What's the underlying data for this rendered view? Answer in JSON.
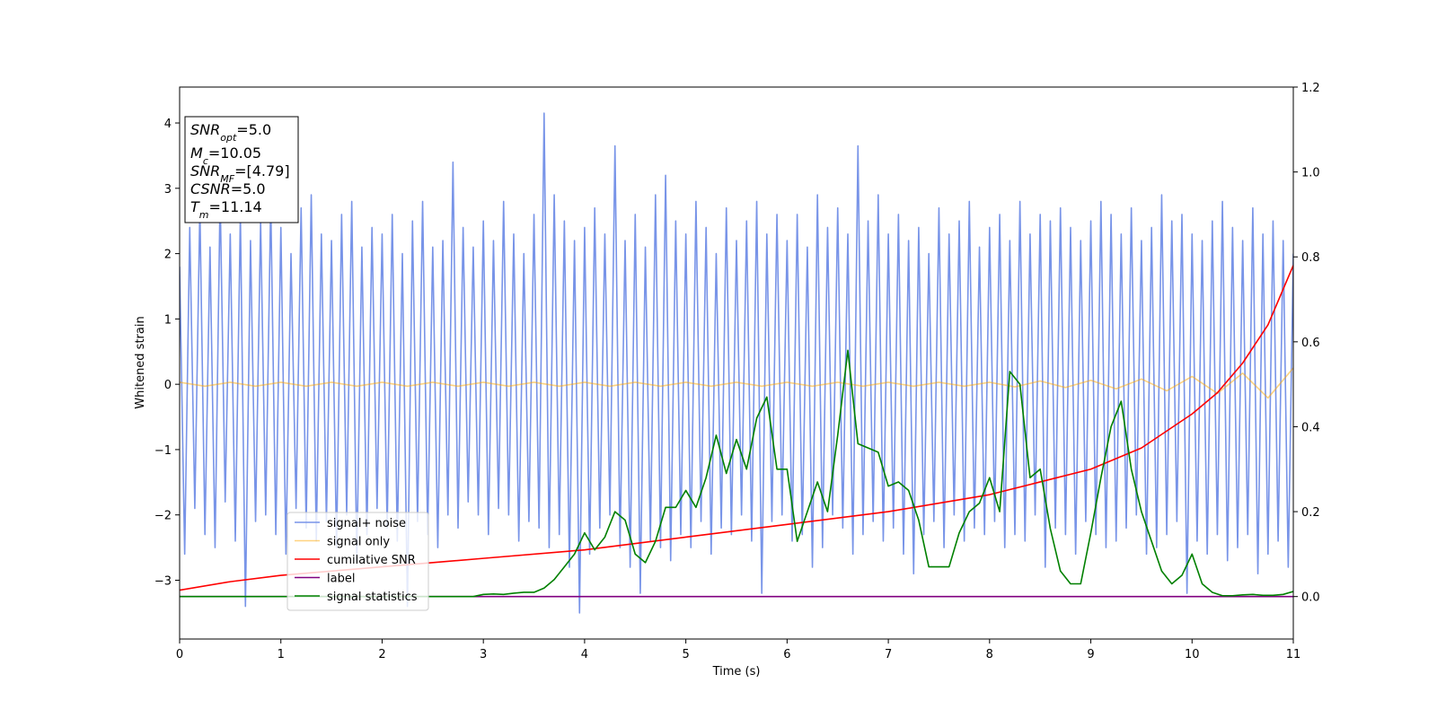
{
  "chart_data": {
    "type": "line",
    "xlabel": "Time (s)",
    "ylabel": "Whitened strain",
    "xlim": [
      0,
      11
    ],
    "xticks": [
      0,
      1,
      2,
      3,
      4,
      5,
      6,
      7,
      8,
      9,
      10,
      11
    ],
    "ylim": [
      -3.9,
      4.55
    ],
    "yticks": [
      {
        "value": -3,
        "label": "−3"
      },
      {
        "value": -2,
        "label": "−2"
      },
      {
        "value": -1,
        "label": "−1"
      },
      0,
      1,
      2,
      3,
      4
    ],
    "y2lim": [
      -0.1,
      1.2
    ],
    "y2ticks": [
      {
        "value": 0,
        "label": "0.0"
      },
      {
        "value": 0.2,
        "label": "0.2"
      },
      {
        "value": 0.4,
        "label": "0.4"
      },
      {
        "value": 0.6,
        "label": "0.6"
      },
      {
        "value": 0.8,
        "label": "0.8"
      },
      {
        "value": 1.0,
        "label": "1.0"
      },
      {
        "value": 1.2,
        "label": "1.2"
      }
    ],
    "legend": "lower left",
    "annotations": [
      {
        "main": "SNR",
        "sub": "opt",
        "rest": "=5.0"
      },
      {
        "main": "M",
        "sub": "c",
        "rest": "=10.05"
      },
      {
        "main": "SNR",
        "sub": "MF",
        "rest": "=[4.79]"
      },
      {
        "main": "CSNR",
        "rest": "=5.0"
      },
      {
        "main": "T",
        "sub": "m",
        "rest": "=11.14"
      }
    ],
    "series": [
      {
        "name": "signal+ noise",
        "color": "#7894e8",
        "x": [
          0,
          0.05,
          0.1,
          0.15,
          0.2,
          0.25,
          0.3,
          0.35,
          0.4,
          0.45,
          0.5,
          0.55,
          0.6,
          0.65,
          0.7,
          0.75,
          0.8,
          0.85,
          0.9,
          0.95,
          1,
          1.05,
          1.1,
          1.15,
          1.2,
          1.25,
          1.3,
          1.35,
          1.4,
          1.45,
          1.5,
          1.55,
          1.6,
          1.65,
          1.7,
          1.75,
          1.8,
          1.85,
          1.9,
          1.95,
          2,
          2.05,
          2.1,
          2.15,
          2.2,
          2.25,
          2.3,
          2.35,
          2.4,
          2.45,
          2.5,
          2.55,
          2.6,
          2.65,
          2.7,
          2.75,
          2.8,
          2.85,
          2.9,
          2.95,
          3,
          3.05,
          3.1,
          3.15,
          3.2,
          3.25,
          3.3,
          3.35,
          3.4,
          3.45,
          3.5,
          3.55,
          3.6,
          3.65,
          3.7,
          3.75,
          3.8,
          3.85,
          3.9,
          3.95,
          4,
          4.05,
          4.1,
          4.15,
          4.2,
          4.25,
          4.3,
          4.35,
          4.4,
          4.45,
          4.5,
          4.55,
          4.6,
          4.65,
          4.7,
          4.75,
          4.8,
          4.85,
          4.9,
          4.95,
          5,
          5.05,
          5.1,
          5.15,
          5.2,
          5.25,
          5.3,
          5.35,
          5.4,
          5.45,
          5.5,
          5.55,
          5.6,
          5.65,
          5.7,
          5.75,
          5.8,
          5.85,
          5.9,
          5.95,
          6,
          6.05,
          6.1,
          6.15,
          6.2,
          6.25,
          6.3,
          6.35,
          6.4,
          6.45,
          6.5,
          6.55,
          6.6,
          6.65,
          6.7,
          6.75,
          6.8,
          6.85,
          6.9,
          6.95,
          7,
          7.05,
          7.1,
          7.15,
          7.2,
          7.25,
          7.3,
          7.35,
          7.4,
          7.45,
          7.5,
          7.55,
          7.6,
          7.65,
          7.7,
          7.75,
          7.8,
          7.85,
          7.9,
          7.95,
          8,
          8.05,
          8.1,
          8.15,
          8.2,
          8.25,
          8.3,
          8.35,
          8.4,
          8.45,
          8.5,
          8.55,
          8.6,
          8.65,
          8.7,
          8.75,
          8.8,
          8.85,
          8.9,
          8.95,
          9,
          9.05,
          9.1,
          9.15,
          9.2,
          9.25,
          9.3,
          9.35,
          9.4,
          9.45,
          9.5,
          9.55,
          9.6,
          9.65,
          9.7,
          9.75,
          9.8,
          9.85,
          9.9,
          9.95,
          10,
          10.05,
          10.1,
          10.15,
          10.2,
          10.25,
          10.3,
          10.35,
          10.4,
          10.45,
          10.5,
          10.55,
          10.6,
          10.65,
          10.7,
          10.75,
          10.8,
          10.85,
          10.9,
          10.95,
          11
        ],
        "values": [
          1.8,
          -2.6,
          2.4,
          -1.9,
          2.7,
          -2.3,
          2.1,
          -2.5,
          2.9,
          -1.8,
          2.3,
          -2.4,
          2.6,
          -3.4,
          2.2,
          -2.1,
          2.5,
          -2.0,
          2.8,
          -2.3,
          2.4,
          -2.6,
          2.0,
          -1.9,
          2.7,
          -2.2,
          2.9,
          -2.4,
          2.3,
          -2.1,
          2.2,
          -2.5,
          2.6,
          -2.0,
          2.8,
          -2.7,
          2.1,
          -2.3,
          2.4,
          -1.9,
          2.3,
          -2.2,
          2.6,
          -2.4,
          2.0,
          -3.4,
          2.5,
          -2.1,
          2.8,
          -2.3,
          2.1,
          -2.5,
          2.2,
          -2.0,
          3.4,
          -2.2,
          2.4,
          -1.8,
          2.1,
          -2.0,
          2.5,
          -2.3,
          2.2,
          -1.9,
          2.8,
          -2.0,
          2.3,
          -2.4,
          2.0,
          -2.1,
          2.6,
          -2.2,
          4.15,
          -2.5,
          2.9,
          -2.3,
          2.5,
          -2.8,
          2.2,
          -3.5,
          2.4,
          -2.6,
          2.7,
          -2.2,
          2.3,
          -2.0,
          3.65,
          -2.5,
          2.2,
          -2.8,
          2.6,
          -3.2,
          2.1,
          -2.4,
          2.9,
          -2.5,
          3.2,
          -2.7,
          2.5,
          -2.3,
          2.3,
          -2.5,
          2.8,
          -2.1,
          2.4,
          -2.6,
          2.0,
          -2.2,
          2.7,
          -2.3,
          2.2,
          -2.0,
          2.5,
          -2.4,
          2.8,
          -3.2,
          2.3,
          -2.1,
          2.6,
          -2.0,
          2.2,
          -2.4,
          2.6,
          -2.3,
          2.1,
          -2.8,
          2.9,
          -2.5,
          2.4,
          -2.0,
          2.7,
          -2.2,
          2.3,
          -2.6,
          3.65,
          -2.3,
          2.5,
          -2.1,
          2.9,
          -2.4,
          2.3,
          -2.2,
          2.6,
          -2.6,
          2.2,
          -2.9,
          2.4,
          -2.3,
          2.0,
          -2.1,
          2.7,
          -2.5,
          2.3,
          -2.0,
          2.5,
          -2.4,
          2.8,
          -2.2,
          2.1,
          -2.3,
          2.4,
          -2.1,
          2.6,
          -2.5,
          2.2,
          -2.3,
          2.8,
          -2.4,
          2.3,
          -2.0,
          2.6,
          -2.8,
          2.5,
          -2.2,
          2.7,
          -2.3,
          2.4,
          -2.6,
          2.2,
          -2.1,
          2.5,
          -2.3,
          2.8,
          -2.5,
          2.6,
          -2.4,
          2.3,
          -2.2,
          2.7,
          -2.0,
          2.2,
          -2.6,
          2.4,
          -2.5,
          2.9,
          -2.3,
          2.5,
          -2.1,
          2.6,
          -3.2,
          2.3,
          -2.4,
          2.2,
          -2.6,
          2.5,
          -2.3,
          2.8,
          -2.7,
          2.4,
          -2.5,
          2.2,
          -2.3,
          2.7,
          -2.9,
          2.3,
          -2.6,
          2.5,
          -2.4,
          2.2,
          -2.8,
          2.0
        ]
      },
      {
        "name": "signal only",
        "color": "#ffa500",
        "x": [
          0,
          0.25,
          0.5,
          0.75,
          1,
          1.25,
          1.5,
          1.75,
          2,
          2.25,
          2.5,
          2.75,
          3,
          3.25,
          3.5,
          3.75,
          4,
          4.25,
          4.5,
          4.75,
          5,
          5.25,
          5.5,
          5.75,
          6,
          6.25,
          6.5,
          6.75,
          7,
          7.25,
          7.5,
          7.75,
          8,
          8.25,
          8.5,
          8.75,
          9,
          9.25,
          9.5,
          9.75,
          10,
          10.25,
          10.5,
          10.75,
          11
        ],
        "values": [
          0.03,
          -0.03,
          0.03,
          -0.03,
          0.03,
          -0.03,
          0.03,
          -0.03,
          0.03,
          -0.03,
          0.03,
          -0.03,
          0.03,
          -0.03,
          0.03,
          -0.03,
          0.03,
          -0.03,
          0.03,
          -0.03,
          0.03,
          -0.03,
          0.03,
          -0.03,
          0.03,
          -0.03,
          0.03,
          -0.03,
          0.03,
          -0.03,
          0.03,
          -0.03,
          0.03,
          -0.04,
          0.05,
          -0.05,
          0.06,
          -0.07,
          0.08,
          -0.1,
          0.12,
          -0.14,
          0.17,
          -0.21,
          0.25
        ]
      },
      {
        "name": "cumilative SNR",
        "color": "#ff0000",
        "axis": "y2",
        "x": [
          0,
          0.5,
          1,
          2,
          3,
          4,
          5,
          6,
          7,
          8,
          8.5,
          9,
          9.5,
          10,
          10.25,
          10.5,
          10.75,
          11
        ],
        "values": [
          0.015,
          0.035,
          0.05,
          0.07,
          0.09,
          0.11,
          0.14,
          0.17,
          0.2,
          0.24,
          0.27,
          0.3,
          0.35,
          0.43,
          0.48,
          0.55,
          0.64,
          0.78
        ]
      },
      {
        "name": "label",
        "color": "#800080",
        "axis": "y2",
        "x": [
          0,
          11
        ],
        "values": [
          0,
          0
        ]
      },
      {
        "name": "signal statistics",
        "color": "#008000",
        "axis": "y2",
        "x": [
          0,
          0.1,
          0.2,
          0.3,
          0.4,
          0.5,
          0.6,
          0.7,
          0.8,
          0.9,
          1,
          1.1,
          1.2,
          1.3,
          1.4,
          1.5,
          1.6,
          1.7,
          1.8,
          1.9,
          2,
          2.1,
          2.2,
          2.3,
          2.4,
          2.5,
          2.6,
          2.7,
          2.8,
          2.9,
          3,
          3.1,
          3.2,
          3.3,
          3.4,
          3.5,
          3.6,
          3.7,
          3.8,
          3.9,
          4,
          4.1,
          4.2,
          4.3,
          4.4,
          4.5,
          4.6,
          4.7,
          4.8,
          4.9,
          5,
          5.1,
          5.2,
          5.3,
          5.4,
          5.5,
          5.6,
          5.7,
          5.8,
          5.9,
          6,
          6.1,
          6.2,
          6.3,
          6.4,
          6.5,
          6.6,
          6.7,
          6.8,
          6.9,
          7,
          7.1,
          7.2,
          7.3,
          7.4,
          7.5,
          7.6,
          7.7,
          7.8,
          7.9,
          8,
          8.1,
          8.2,
          8.3,
          8.4,
          8.5,
          8.6,
          8.7,
          8.8,
          8.9,
          9,
          9.1,
          9.2,
          9.3,
          9.4,
          9.5,
          9.6,
          9.7,
          9.8,
          9.9,
          10,
          10.1,
          10.2,
          10.3,
          10.4,
          10.5,
          10.6,
          10.7,
          10.8,
          10.9,
          11
        ],
        "values": [
          0,
          0,
          0,
          0,
          0,
          0,
          0,
          0,
          0,
          0,
          0,
          0,
          0,
          0,
          0,
          0,
          0,
          0,
          0,
          0,
          0,
          0,
          0,
          0,
          0,
          0,
          0,
          0,
          0,
          0,
          0.005,
          0.006,
          0.005,
          0.008,
          0.01,
          0.01,
          0.02,
          0.04,
          0.07,
          0.1,
          0.15,
          0.11,
          0.14,
          0.2,
          0.18,
          0.1,
          0.08,
          0.13,
          0.21,
          0.21,
          0.25,
          0.21,
          0.28,
          0.38,
          0.29,
          0.37,
          0.3,
          0.42,
          0.47,
          0.3,
          0.3,
          0.13,
          0.2,
          0.27,
          0.2,
          0.38,
          0.58,
          0.36,
          0.35,
          0.34,
          0.26,
          0.27,
          0.25,
          0.18,
          0.07,
          0.07,
          0.07,
          0.15,
          0.2,
          0.22,
          0.28,
          0.2,
          0.53,
          0.5,
          0.28,
          0.3,
          0.16,
          0.06,
          0.03,
          0.03,
          0.15,
          0.28,
          0.4,
          0.46,
          0.3,
          0.2,
          0.13,
          0.06,
          0.03,
          0.05,
          0.1,
          0.03,
          0.01,
          0.002,
          0.002,
          0.004,
          0.005,
          0.003,
          0.003,
          0.005,
          0.012
        ]
      }
    ]
  }
}
